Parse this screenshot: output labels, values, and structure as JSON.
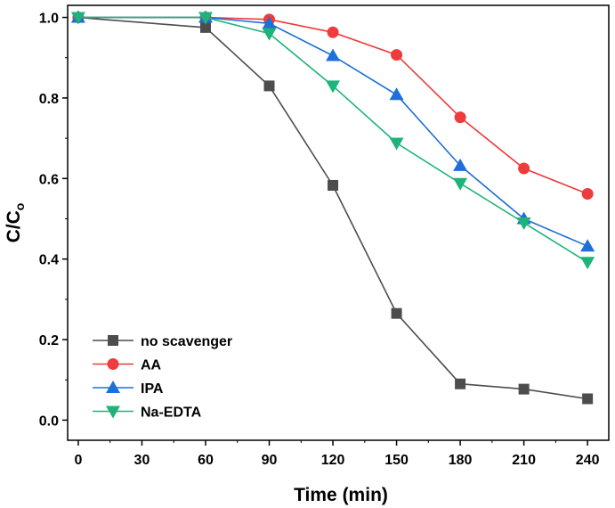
{
  "chart_data": {
    "type": "line",
    "title": "",
    "xlabel": "Time (min)",
    "ylabel_main": "C/C",
    "ylabel_sub": "o",
    "x": [
      0,
      60,
      90,
      120,
      150,
      180,
      210,
      240
    ],
    "xticks": [
      0,
      30,
      60,
      90,
      120,
      150,
      180,
      210,
      240
    ],
    "xtick_labels": [
      "0",
      "30",
      "60",
      "90",
      "120",
      "150",
      "180",
      "210",
      "240"
    ],
    "yticks": [
      0.0,
      0.2,
      0.4,
      0.6,
      0.8,
      1.0
    ],
    "ytick_labels": [
      "0.0",
      "0.2",
      "0.4",
      "0.6",
      "0.8",
      "1.0"
    ],
    "xlim": [
      -5,
      250
    ],
    "ylim": [
      -0.05,
      1.03
    ],
    "grid": false,
    "legend_position": "bottom-left",
    "series": [
      {
        "name": "no scavenger",
        "marker": "square",
        "color": "#4d4d4d",
        "values": [
          1.0,
          0.975,
          0.83,
          0.583,
          0.265,
          0.09,
          0.077,
          0.053
        ]
      },
      {
        "name": "AA",
        "marker": "circle",
        "color": "#ee3b3b",
        "values": [
          1.0,
          1.0,
          0.995,
          0.963,
          0.907,
          0.752,
          0.625,
          0.562
        ]
      },
      {
        "name": "IPA",
        "marker": "triangle-up",
        "color": "#1e6fd9",
        "values": [
          1.0,
          1.0,
          0.985,
          0.905,
          0.808,
          0.632,
          0.5,
          0.432
        ]
      },
      {
        "name": "Na-EDTA",
        "marker": "triangle-down",
        "color": "#1eb37a",
        "values": [
          1.0,
          1.0,
          0.96,
          0.83,
          0.688,
          0.588,
          0.49,
          0.392
        ]
      }
    ]
  }
}
